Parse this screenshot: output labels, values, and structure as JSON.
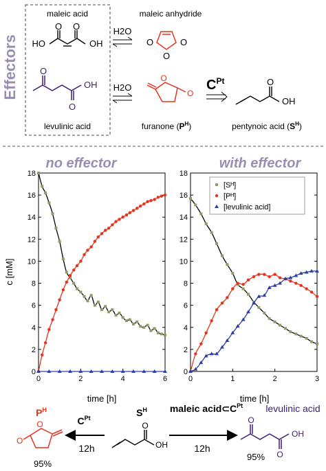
{
  "scheme": {
    "side_label": "Effectors",
    "maleic_acid": "maleic acid",
    "maleic_anhydride": "maleic anhydride",
    "levulinic_acid": "levulinic acid",
    "water_1": "H2O",
    "water_2": "H2O",
    "furanone_prefix": "furanone (",
    "furanone_sym": "P",
    "furanone_sup": "H",
    "furanone_suffix": ")",
    "pentynoic_prefix": "pentynoic acid (",
    "pentynoic_sym": "S",
    "pentynoic_sup": "H",
    "pentynoic_suffix": ")",
    "catalyst_main": "C",
    "catalyst_sup": "Pt",
    "atom_HO": "HO",
    "atom_OH": "OH",
    "atom_O": "O"
  },
  "panels": {
    "no_effector_title": "no effector",
    "with_effector_title": "with effector",
    "ylabel": "c [mM]",
    "xlabel": "time [h]"
  },
  "chart_data": [
    {
      "type": "scatter",
      "title": "no effector",
      "xlabel": "time [h]",
      "ylabel": "c [mM]",
      "xlim": [
        0,
        6
      ],
      "ylim": [
        0,
        18
      ],
      "xticks": [
        0,
        2,
        4,
        6
      ],
      "yticks": [
        0,
        2,
        4,
        6,
        8,
        10,
        12,
        14,
        16,
        18
      ],
      "grid": false,
      "series": [
        {
          "name": "",
          "color": "#8f9a6a",
          "marker": "square",
          "x": [
            0.0,
            0.17,
            0.33,
            0.5,
            0.67,
            0.83,
            1.0,
            1.17,
            1.33,
            1.5,
            1.67,
            1.83,
            2.0,
            2.17,
            2.33,
            2.5,
            2.67,
            2.83,
            3.0,
            3.17,
            3.33,
            3.5,
            3.67,
            3.83,
            4.0,
            4.17,
            4.33,
            4.5,
            4.67,
            4.83,
            5.0,
            5.17,
            5.33,
            5.5,
            5.67,
            5.83,
            6.0
          ],
          "y": [
            18.0,
            16.8,
            16.2,
            15.3,
            14.3,
            13.0,
            11.8,
            10.2,
            9.0,
            8.5,
            8.0,
            7.5,
            7.2,
            6.8,
            6.4,
            6.9,
            6.0,
            6.3,
            5.6,
            5.9,
            5.4,
            5.6,
            5.1,
            5.3,
            4.9,
            4.6,
            4.7,
            4.3,
            4.5,
            4.1,
            4.0,
            4.2,
            3.7,
            3.9,
            3.5,
            3.4,
            3.3
          ]
        },
        {
          "name": "",
          "color": "#e8321e",
          "marker": "circle",
          "x": [
            0.0,
            0.17,
            0.33,
            0.5,
            0.67,
            0.83,
            1.0,
            1.17,
            1.33,
            1.5,
            1.67,
            1.83,
            2.0,
            2.17,
            2.33,
            2.5,
            2.67,
            2.83,
            3.0,
            3.17,
            3.33,
            3.5,
            3.67,
            3.83,
            4.0,
            4.17,
            4.33,
            4.5,
            4.67,
            4.83,
            5.0,
            5.17,
            5.33,
            5.5,
            5.67,
            5.83,
            6.0
          ],
          "y": [
            0.0,
            1.5,
            2.6,
            3.8,
            4.7,
            5.6,
            6.5,
            7.4,
            8.1,
            8.7,
            9.2,
            9.6,
            10.0,
            10.6,
            11.0,
            11.3,
            11.8,
            12.2,
            12.5,
            12.8,
            13.0,
            13.3,
            13.6,
            13.8,
            14.0,
            14.2,
            14.4,
            14.6,
            14.8,
            15.0,
            15.2,
            15.4,
            15.5,
            15.6,
            15.8,
            15.9,
            16.0
          ]
        },
        {
          "name": "",
          "color": "#2d3da8",
          "marker": "triangle",
          "x": [
            0.0,
            0.5,
            1.0,
            1.5,
            2.0,
            2.5,
            3.0,
            3.5,
            4.0,
            4.5,
            5.0,
            5.5,
            6.0
          ],
          "y": [
            0,
            0,
            0,
            0,
            0,
            0,
            0,
            0,
            0,
            0,
            0,
            0,
            0
          ]
        }
      ]
    },
    {
      "type": "scatter",
      "title": "with effector",
      "xlabel": "time [h]",
      "ylabel": "",
      "xlim": [
        0,
        3
      ],
      "ylim": [
        0,
        18
      ],
      "xticks": [
        0,
        1,
        2,
        3
      ],
      "yticks": [
        0,
        2,
        4,
        6,
        8,
        10,
        12,
        14,
        16,
        18
      ],
      "grid": false,
      "legend": "top-right",
      "series": [
        {
          "name": "[Sᴴ]",
          "color": "#8f9a6a",
          "marker": "square",
          "x": [
            0.0,
            0.12,
            0.25,
            0.37,
            0.5,
            0.62,
            0.75,
            0.87,
            1.0,
            1.12,
            1.25,
            1.37,
            1.5,
            1.62,
            1.75,
            1.87,
            2.0,
            2.12,
            2.25,
            2.37,
            2.5,
            2.62,
            2.75,
            2.87,
            3.0
          ],
          "y": [
            15.7,
            15.1,
            14.3,
            13.4,
            12.6,
            11.6,
            10.5,
            9.7,
            8.9,
            7.9,
            7.5,
            7.0,
            6.3,
            5.8,
            5.3,
            4.8,
            4.5,
            4.2,
            3.9,
            3.6,
            3.4,
            3.2,
            3.0,
            2.7,
            2.5
          ]
        },
        {
          "name": "[Pᴴ]",
          "color": "#e8321e",
          "marker": "circle",
          "x": [
            0.0,
            0.12,
            0.25,
            0.37,
            0.5,
            0.62,
            0.75,
            0.87,
            1.0,
            1.12,
            1.25,
            1.37,
            1.5,
            1.62,
            1.75,
            1.87,
            2.0,
            2.12,
            2.25,
            2.37,
            2.5,
            2.62,
            2.75,
            2.87,
            3.0
          ],
          "y": [
            0.0,
            1.6,
            2.5,
            3.5,
            4.6,
            5.6,
            6.2,
            6.7,
            7.5,
            8.0,
            7.9,
            8.3,
            8.6,
            8.8,
            8.8,
            8.6,
            8.8,
            8.5,
            8.4,
            8.2,
            8.0,
            7.8,
            7.5,
            7.2,
            6.8
          ]
        },
        {
          "name": "[levulinic acid]",
          "color": "#2d3da8",
          "marker": "triangle",
          "x": [
            0.0,
            0.12,
            0.25,
            0.37,
            0.5,
            0.62,
            0.75,
            0.87,
            1.0,
            1.12,
            1.25,
            1.37,
            1.5,
            1.62,
            1.75,
            1.87,
            2.0,
            2.12,
            2.25,
            2.37,
            2.5,
            2.62,
            2.75,
            2.87,
            3.0
          ],
          "y": [
            0.0,
            0.2,
            0.8,
            1.4,
            1.6,
            1.6,
            2.2,
            2.8,
            3.5,
            4.1,
            4.7,
            5.4,
            6.2,
            6.8,
            6.9,
            7.6,
            7.8,
            8.0,
            8.4,
            8.5,
            8.7,
            8.9,
            9.0,
            9.1,
            9.1
          ]
        }
      ]
    }
  ],
  "bottom": {
    "left_product_sym": "P",
    "left_product_sup": "H",
    "left_catalyst": "C",
    "left_catalyst_sup": "Pt",
    "left_time": "12h",
    "left_yield": "95%",
    "start_sym": "S",
    "start_sup": "H",
    "right_catalyst_prefix": "maleic acid",
    "right_catalyst_symbol": "⊂",
    "right_catalyst_c": "C",
    "right_catalyst_sup": "Pt",
    "right_time": "12h",
    "right_product": "levulinic acid",
    "right_yield": "95%",
    "atom_O": "O",
    "atom_OH": "OH"
  }
}
